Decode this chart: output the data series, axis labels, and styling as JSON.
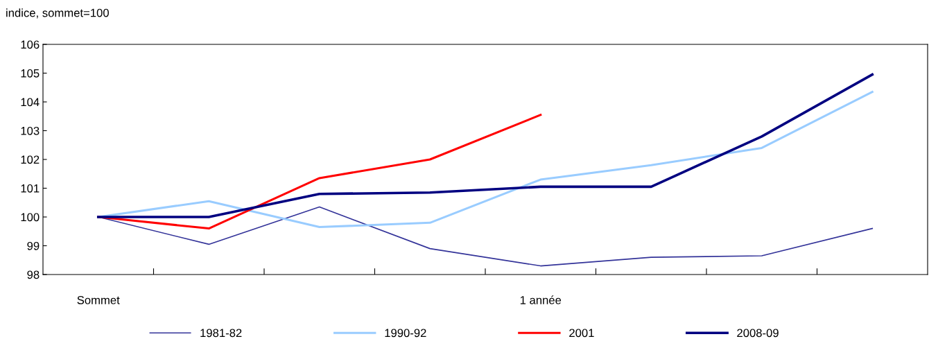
{
  "chart_data": {
    "type": "line",
    "ylabel": "indice, sommet=100",
    "categories": [
      "Sommet",
      null,
      null,
      null,
      "1 année",
      null,
      null,
      null
    ],
    "series": [
      {
        "name": "1981-82",
        "color": "#333399",
        "values": [
          100,
          99.05,
          100.35,
          98.9,
          98.3,
          98.6,
          98.65,
          99.6
        ]
      },
      {
        "name": "1990-92",
        "color": "#99ccff",
        "values": [
          100,
          100.55,
          99.65,
          99.8,
          101.3,
          101.8,
          102.4,
          104.35
        ]
      },
      {
        "name": "2001",
        "color": "#ff0000",
        "values": [
          100,
          99.6,
          101.35,
          102.0,
          103.55,
          null,
          null,
          null
        ]
      },
      {
        "name": "2008-09",
        "color": "#000080",
        "values": [
          100,
          100.0,
          100.8,
          100.85,
          101.05,
          101.05,
          102.8,
          104.95
        ]
      }
    ],
    "ylim": [
      98,
      106
    ],
    "yticks": [
      98,
      99,
      100,
      101,
      102,
      103,
      104,
      105,
      106
    ],
    "grid": false,
    "legend": "bottom",
    "marker": "none",
    "line_style": "solid"
  }
}
